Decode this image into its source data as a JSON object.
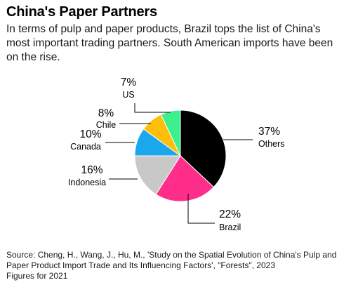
{
  "chart_data": {
    "type": "pie",
    "title": "China's Paper Partners",
    "subtitle": "In terms of pulp and paper products, Brazil tops the list of China's most important trading partners. South American imports have been on the rise.",
    "slices": [
      {
        "label": "Others",
        "value": 37,
        "value_label": "37%",
        "color": "#000000"
      },
      {
        "label": "Brazil",
        "value": 22,
        "value_label": "22%",
        "color": "#ff2e8b"
      },
      {
        "label": "Indonesia",
        "value": 16,
        "value_label": "16%",
        "color": "#c8c8c8"
      },
      {
        "label": "Canada",
        "value": 10,
        "value_label": "10%",
        "color": "#1aa7ec"
      },
      {
        "label": "Chile",
        "value": 8,
        "value_label": "8%",
        "color": "#ffbe0b"
      },
      {
        "label": "US",
        "value": 7,
        "value_label": "7%",
        "color": "#3cf08c"
      }
    ],
    "source": "Source: Cheng, H., Wang, J., Hu, M., 'Study on the Spatial Evolution of China's Pulp and Paper Product Import Trade and Its Influencing Factors', \"Forests\", 2023",
    "note": "Figures for 2021"
  }
}
